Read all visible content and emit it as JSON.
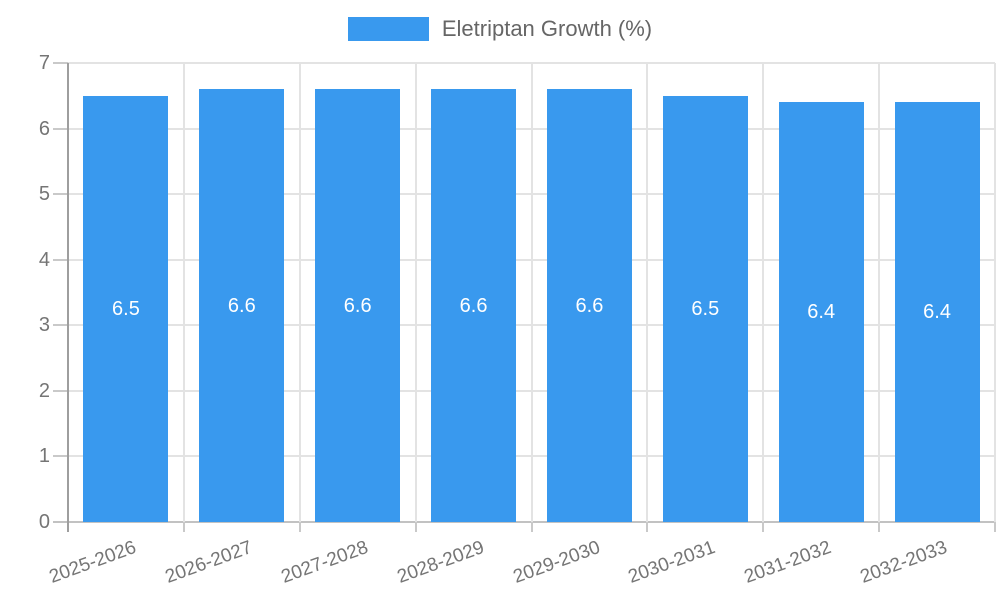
{
  "legend": {
    "label": "Eletriptan Growth (%)"
  },
  "chart_data": {
    "type": "bar",
    "title": "",
    "series_name": "Eletriptan Growth (%)",
    "categories": [
      "2025-2026",
      "2026-2027",
      "2027-2028",
      "2028-2029",
      "2029-2030",
      "2030-2031",
      "2031-2032",
      "2032-2033"
    ],
    "values": [
      6.5,
      6.6,
      6.6,
      6.6,
      6.6,
      6.5,
      6.4,
      6.4
    ],
    "bar_labels": [
      "6.5",
      "6.6",
      "6.6",
      "6.6",
      "6.6",
      "6.5",
      "6.4",
      "6.4"
    ],
    "xlabel": "",
    "ylabel": "",
    "ylim": [
      0,
      7
    ],
    "yticks": [
      "0",
      "1",
      "2",
      "3",
      "4",
      "5",
      "6",
      "7"
    ],
    "grid": true,
    "legend_position": "top",
    "colors": {
      "bar": "#3999EE",
      "grid": "#e3e3e3",
      "zero_line": "#c2c2c2",
      "axis_line": "#9e9e9e",
      "tick": "#c9c9c9",
      "axis_text": "#757575",
      "legend_text": "#666666",
      "bar_label": "#ffffff",
      "background": "#ffffff"
    }
  }
}
